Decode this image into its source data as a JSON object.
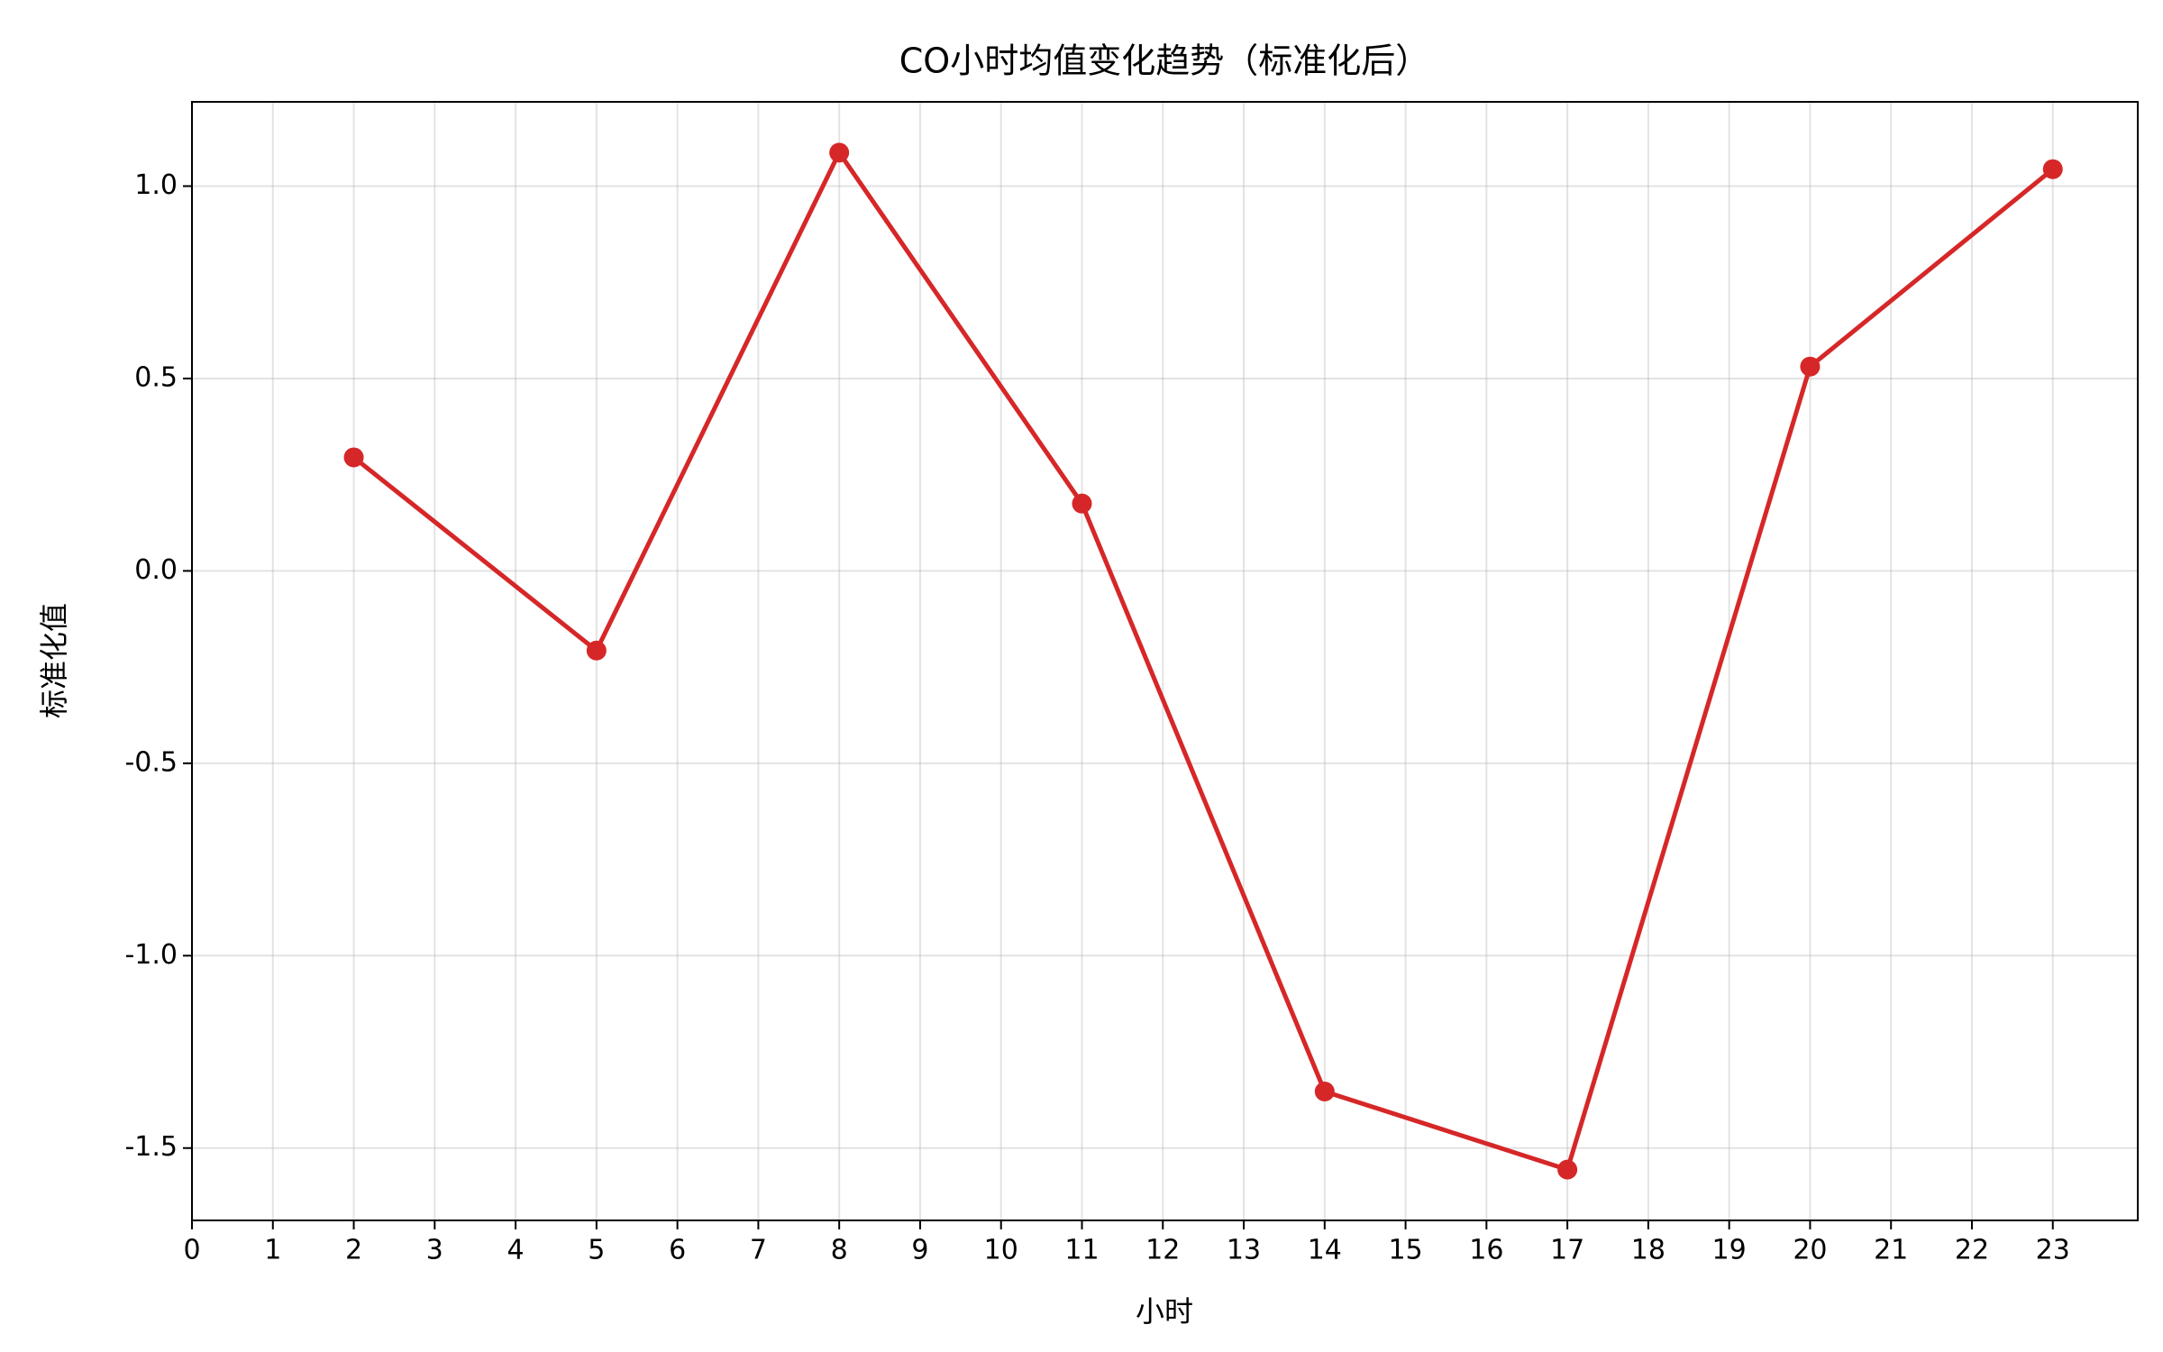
{
  "chart_data": {
    "type": "line",
    "title": "CO小时均值变化趋势（标准化后）",
    "xlabel": "小时",
    "ylabel": "标准化值",
    "x": [
      2,
      5,
      8,
      11,
      14,
      17,
      20,
      23
    ],
    "series": [
      {
        "name": "CO",
        "color": "#d62728",
        "values": [
          0.295,
          -0.207,
          1.087,
          0.175,
          -1.353,
          -1.556,
          0.531,
          1.044
        ]
      }
    ],
    "xlim": [
      0,
      24.05
    ],
    "xticks": [
      0,
      1,
      2,
      3,
      4,
      5,
      6,
      7,
      8,
      9,
      10,
      11,
      12,
      13,
      14,
      15,
      16,
      17,
      18,
      19,
      20,
      21,
      22,
      23
    ],
    "ylim": [
      -1.688,
      1.219
    ],
    "yticks": [
      -1.5,
      {
        "value": -1,
        "label": "-1.0"
      },
      -0.5,
      {
        "value": 0,
        "label": "0.0"
      },
      0.5,
      {
        "value": 1,
        "label": "1.0"
      }
    ],
    "grid": true
  }
}
